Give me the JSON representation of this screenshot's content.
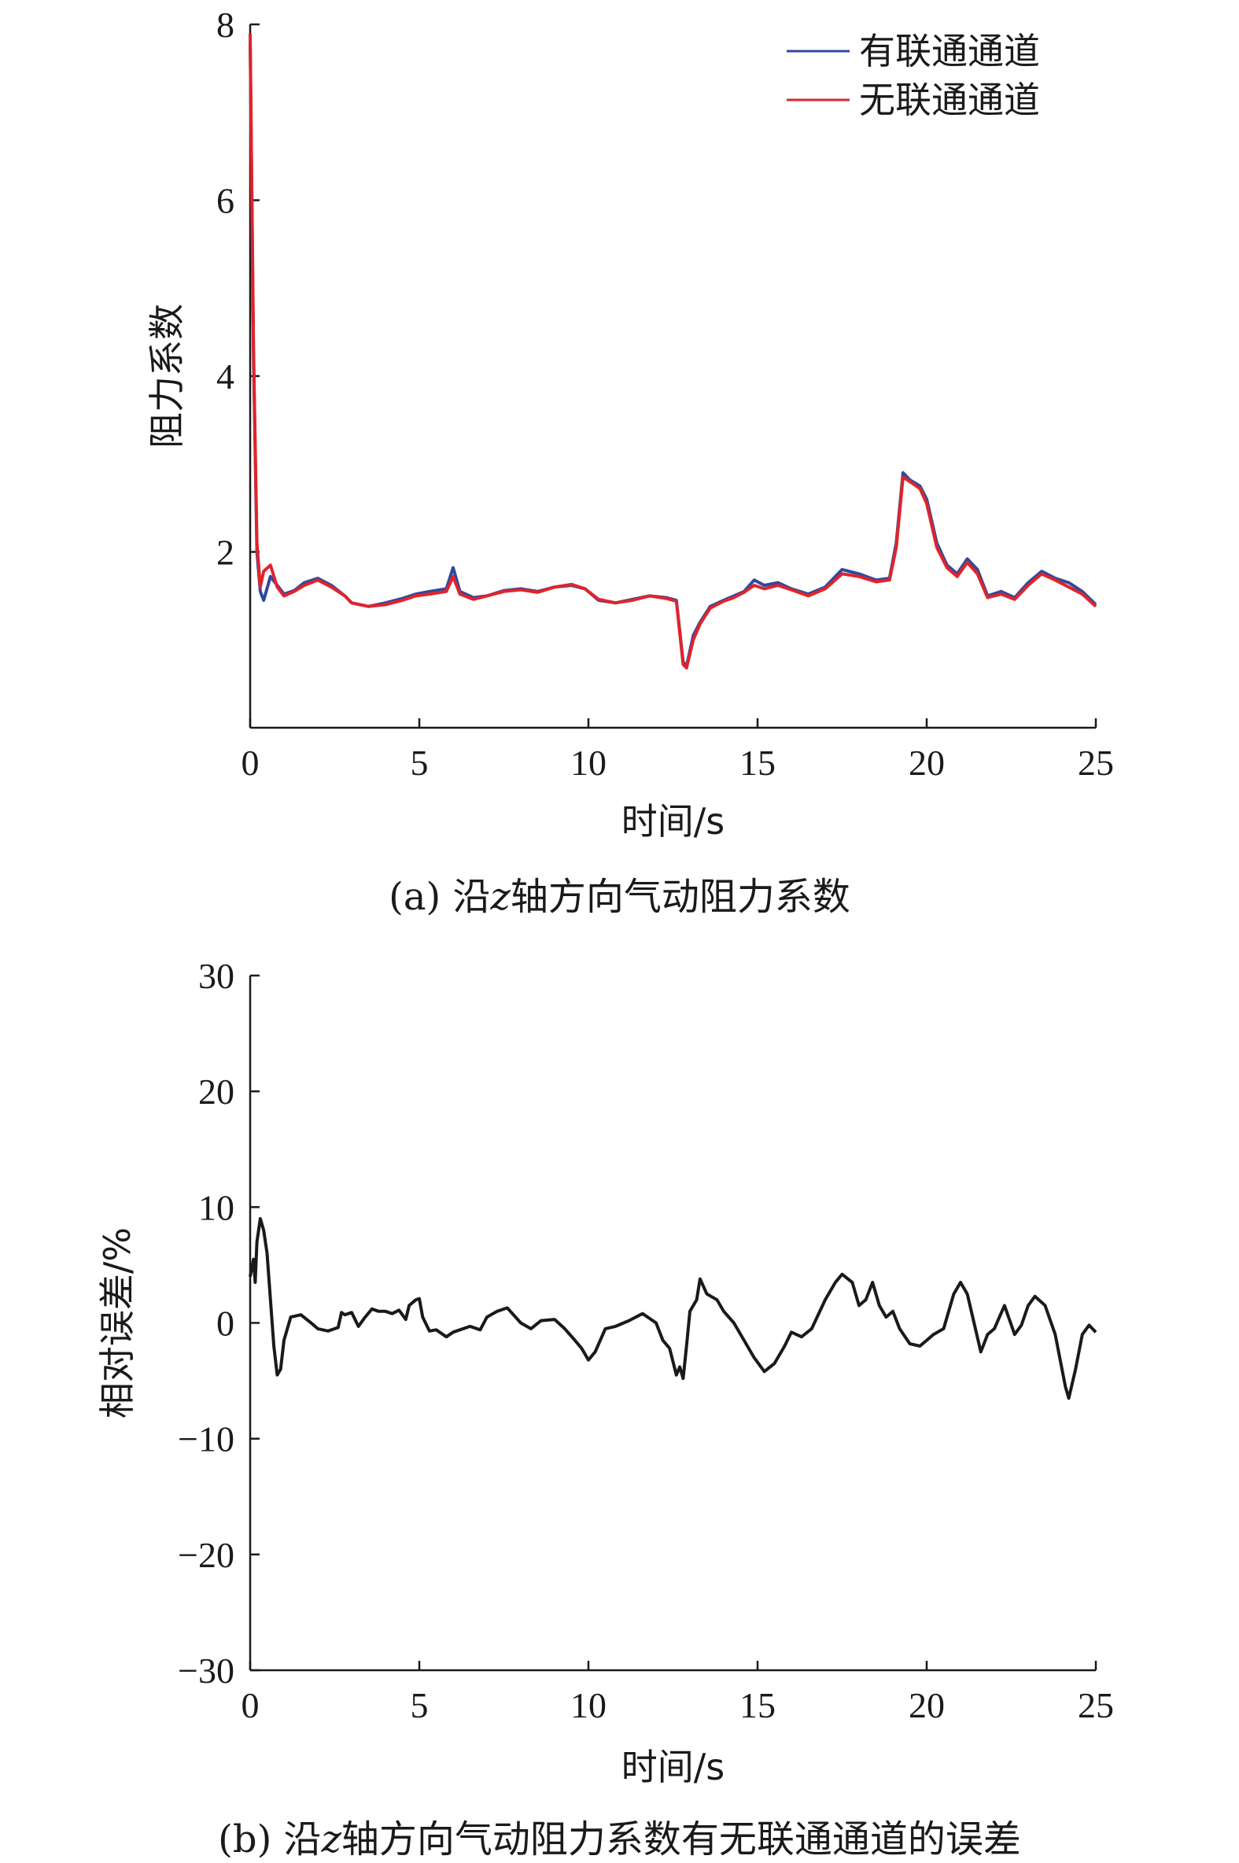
{
  "chart_data": [
    {
      "type": "line",
      "caption_prefix": "(a) 沿",
      "caption_axis": "z",
      "caption_suffix": "轴方向气动阻力系数",
      "xlabel": "时间/s",
      "ylabel": "阻力系数",
      "xlim": [
        0,
        25
      ],
      "ylim": [
        0,
        8
      ],
      "xticks": [
        0,
        5,
        10,
        15,
        20,
        25
      ],
      "yticks": [
        2,
        4,
        6,
        8
      ],
      "grid": false,
      "legend": "top-right",
      "series": [
        {
          "name": "有联通通道",
          "color": "#2e4a9e",
          "x": [
            0,
            0.1,
            0.2,
            0.3,
            0.4,
            0.6,
            0.8,
            1.0,
            1.3,
            1.6,
            2.0,
            2.4,
            2.8,
            3.0,
            3.5,
            4.0,
            4.5,
            4.9,
            5.3,
            5.8,
            6.0,
            6.2,
            6.6,
            7.0,
            7.5,
            8.0,
            8.5,
            9.0,
            9.5,
            9.9,
            10.3,
            10.8,
            11.3,
            11.8,
            12.3,
            12.6,
            12.8,
            12.9,
            13.1,
            13.3,
            13.6,
            14.0,
            14.3,
            14.6,
            14.9,
            15.2,
            15.6,
            16.0,
            16.5,
            17.0,
            17.5,
            18.0,
            18.5,
            18.9,
            19.1,
            19.3,
            19.5,
            19.8,
            20.0,
            20.3,
            20.6,
            20.9,
            21.2,
            21.5,
            21.8,
            22.2,
            22.6,
            23.0,
            23.4,
            23.8,
            24.2,
            24.6,
            25.0
          ],
          "values": [
            7.8,
            4.2,
            2.0,
            1.55,
            1.45,
            1.72,
            1.62,
            1.52,
            1.56,
            1.65,
            1.7,
            1.62,
            1.5,
            1.42,
            1.38,
            1.42,
            1.47,
            1.52,
            1.55,
            1.58,
            1.82,
            1.55,
            1.48,
            1.5,
            1.56,
            1.58,
            1.55,
            1.6,
            1.62,
            1.58,
            1.45,
            1.42,
            1.46,
            1.5,
            1.48,
            1.45,
            0.75,
            0.7,
            1.05,
            1.2,
            1.38,
            1.45,
            1.5,
            1.55,
            1.68,
            1.62,
            1.65,
            1.58,
            1.52,
            1.6,
            1.8,
            1.75,
            1.68,
            1.7,
            2.1,
            2.9,
            2.82,
            2.75,
            2.6,
            2.1,
            1.85,
            1.75,
            1.92,
            1.8,
            1.5,
            1.55,
            1.48,
            1.65,
            1.78,
            1.7,
            1.65,
            1.55,
            1.4
          ]
        },
        {
          "name": "无联通通道",
          "color": "#e0242b",
          "x": [
            0,
            0.1,
            0.2,
            0.3,
            0.4,
            0.6,
            0.8,
            1.0,
            1.3,
            1.6,
            2.0,
            2.4,
            2.8,
            3.0,
            3.5,
            4.0,
            4.5,
            4.9,
            5.3,
            5.8,
            6.0,
            6.2,
            6.6,
            7.0,
            7.5,
            8.0,
            8.5,
            9.0,
            9.5,
            9.9,
            10.3,
            10.8,
            11.3,
            11.8,
            12.3,
            12.6,
            12.8,
            12.9,
            13.1,
            13.3,
            13.6,
            14.0,
            14.3,
            14.6,
            14.9,
            15.2,
            15.6,
            16.0,
            16.5,
            17.0,
            17.5,
            18.0,
            18.5,
            18.9,
            19.1,
            19.3,
            19.5,
            19.8,
            20.0,
            20.3,
            20.6,
            20.9,
            21.2,
            21.5,
            21.8,
            22.2,
            22.6,
            23.0,
            23.4,
            23.8,
            24.2,
            24.6,
            25.0
          ],
          "values": [
            7.9,
            4.3,
            2.1,
            1.6,
            1.78,
            1.85,
            1.6,
            1.5,
            1.55,
            1.62,
            1.68,
            1.6,
            1.5,
            1.42,
            1.38,
            1.4,
            1.45,
            1.5,
            1.52,
            1.55,
            1.72,
            1.52,
            1.46,
            1.5,
            1.55,
            1.57,
            1.54,
            1.6,
            1.63,
            1.58,
            1.46,
            1.42,
            1.45,
            1.5,
            1.47,
            1.44,
            0.72,
            0.68,
            1.0,
            1.18,
            1.36,
            1.44,
            1.48,
            1.54,
            1.62,
            1.58,
            1.62,
            1.57,
            1.5,
            1.58,
            1.75,
            1.72,
            1.66,
            1.68,
            2.05,
            2.85,
            2.8,
            2.72,
            2.55,
            2.05,
            1.82,
            1.72,
            1.88,
            1.75,
            1.48,
            1.52,
            1.46,
            1.62,
            1.75,
            1.68,
            1.6,
            1.52,
            1.38
          ]
        }
      ]
    },
    {
      "type": "line",
      "caption_prefix": "(b) 沿",
      "caption_axis": "z",
      "caption_suffix": "轴方向气动阻力系数有无联通通道的误差",
      "xlabel": "时间/s",
      "ylabel": "相对误差/%",
      "xlim": [
        0,
        25
      ],
      "ylim": [
        -30,
        30
      ],
      "xticks": [
        0,
        5,
        10,
        15,
        20,
        25
      ],
      "yticks": [
        -30,
        -20,
        -10,
        0,
        10,
        20,
        30
      ],
      "ytick_labels": [
        "−30",
        "−20",
        "−10",
        "0",
        "10",
        "20",
        "30"
      ],
      "grid": false,
      "series": [
        {
          "color": "#1a1a1a",
          "x": [
            0,
            0.1,
            0.15,
            0.2,
            0.3,
            0.4,
            0.5,
            0.6,
            0.7,
            0.8,
            0.9,
            1.0,
            1.2,
            1.5,
            1.8,
            2.0,
            2.3,
            2.6,
            2.7,
            2.8,
            3.0,
            3.2,
            3.4,
            3.6,
            3.8,
            4.0,
            4.2,
            4.4,
            4.6,
            4.7,
            4.9,
            5.0,
            5.1,
            5.3,
            5.5,
            5.8,
            6.0,
            6.2,
            6.5,
            6.8,
            7.0,
            7.3,
            7.6,
            8.0,
            8.3,
            8.6,
            9.0,
            9.3,
            9.6,
            9.8,
            10.0,
            10.2,
            10.5,
            10.8,
            11.2,
            11.6,
            12.0,
            12.2,
            12.4,
            12.6,
            12.7,
            12.8,
            12.9,
            13.0,
            13.2,
            13.3,
            13.5,
            13.8,
            14.0,
            14.3,
            14.6,
            14.9,
            15.2,
            15.5,
            15.8,
            16.0,
            16.3,
            16.6,
            17.0,
            17.3,
            17.5,
            17.8,
            18.0,
            18.2,
            18.4,
            18.6,
            18.8,
            19.0,
            19.2,
            19.5,
            19.8,
            20.0,
            20.2,
            20.5,
            20.8,
            21.0,
            21.2,
            21.4,
            21.6,
            21.8,
            22.0,
            22.3,
            22.6,
            22.8,
            23.0,
            23.2,
            23.5,
            23.8,
            24.0,
            24.1,
            24.2,
            24.4,
            24.6,
            24.8,
            25.0
          ],
          "values": [
            4.0,
            5.5,
            3.5,
            7.0,
            9.0,
            8.0,
            6.0,
            2.0,
            -2.0,
            -4.5,
            -4.0,
            -1.5,
            0.5,
            0.7,
            0.0,
            -0.5,
            -0.7,
            -0.4,
            0.9,
            0.7,
            0.9,
            -0.3,
            0.5,
            1.2,
            1.0,
            1.0,
            0.8,
            1.1,
            0.3,
            1.5,
            2.0,
            2.1,
            0.5,
            -0.7,
            -0.6,
            -1.2,
            -0.8,
            -0.6,
            -0.3,
            -0.6,
            0.5,
            1.0,
            1.3,
            0.0,
            -0.5,
            0.2,
            0.3,
            -0.5,
            -1.5,
            -2.2,
            -3.2,
            -2.5,
            -0.5,
            -0.3,
            0.2,
            0.8,
            0.0,
            -1.5,
            -2.2,
            -4.5,
            -3.8,
            -4.8,
            -2.0,
            1.0,
            2.0,
            3.8,
            2.5,
            2.0,
            1.0,
            0.0,
            -1.5,
            -3.0,
            -4.2,
            -3.5,
            -2.0,
            -0.8,
            -1.2,
            -0.5,
            2.0,
            3.5,
            4.2,
            3.5,
            1.5,
            2.0,
            3.5,
            1.5,
            0.5,
            1.0,
            -0.5,
            -1.8,
            -2.0,
            -1.5,
            -1.0,
            -0.5,
            2.5,
            3.5,
            2.5,
            0.0,
            -2.5,
            -1.0,
            -0.5,
            1.5,
            -1.0,
            -0.2,
            1.5,
            2.3,
            1.5,
            -1.0,
            -4.0,
            -5.5,
            -6.5,
            -4.0,
            -1.0,
            -0.2,
            -0.8
          ]
        }
      ]
    }
  ]
}
